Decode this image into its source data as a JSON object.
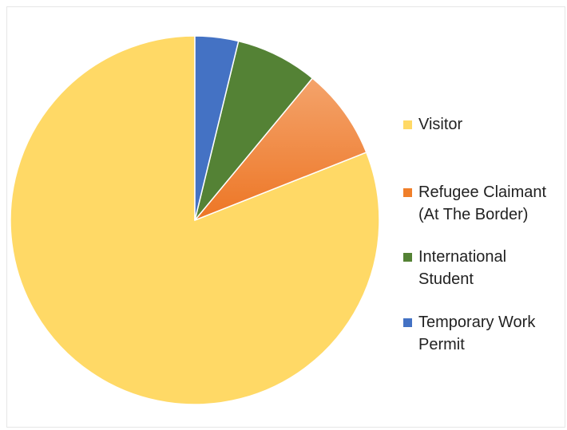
{
  "chart_data": {
    "type": "pie",
    "start_angle": "12 o'clock",
    "direction": "counter-clockwise",
    "slices": [
      {
        "label": "Visitor",
        "value": 81,
        "color": "#FFD966"
      },
      {
        "label": "Refugee Claimant (At The Border)",
        "value": 8,
        "color": "#F07F2A"
      },
      {
        "label": "International Student",
        "value": 7.2,
        "color": "#548235"
      },
      {
        "label": "Temporary Work Permit",
        "value": 3.8,
        "color": "#4472C4"
      }
    ],
    "legend": {
      "position": "right",
      "items": [
        {
          "label": "Visitor",
          "color": "#FFD966"
        },
        {
          "label": "Refugee Claimant (At The Border)",
          "color": "#F07F2A"
        },
        {
          "label": "International Student",
          "color": "#548235"
        },
        {
          "label": "Temporary Work Permit",
          "color": "#4472C4"
        }
      ]
    }
  }
}
